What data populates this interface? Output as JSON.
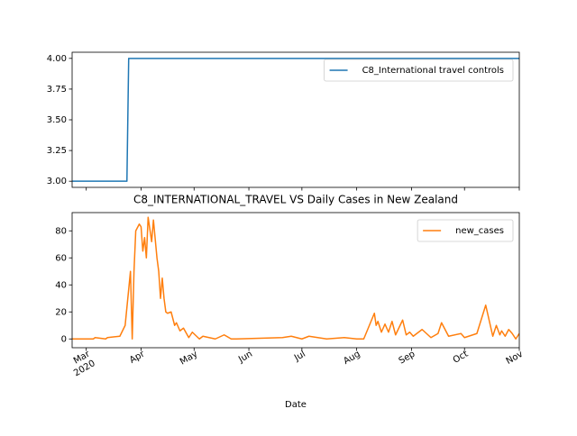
{
  "chart_data": [
    {
      "type": "line",
      "xlim": [
        "2020-02-22",
        "2020-11-01"
      ],
      "ylim": [
        2.95,
        4.05
      ],
      "yticks": [
        {
          "value": 3,
          "label": "3.00"
        },
        {
          "value": 3.25,
          "label": "3.25"
        },
        {
          "value": 3.5,
          "label": "3.50"
        },
        {
          "value": 3.75,
          "label": "3.75"
        },
        {
          "value": 4,
          "label": "4.00"
        }
      ],
      "xticks": [
        "2020-03-01",
        "2020-04-01",
        "2020-05-01",
        "2020-06-01",
        "2020-07-01",
        "2020-08-01",
        "2020-09-01",
        "2020-10-01",
        "2020-11-01"
      ],
      "legend": "upper right",
      "series": [
        {
          "name": "C8_International travel controls",
          "color": "#1f77b4",
          "x": [
            "2020-02-22",
            "2020-03-24",
            "2020-03-25",
            "2020-11-01"
          ],
          "values": [
            3,
            3,
            4,
            4
          ]
        }
      ]
    },
    {
      "type": "line",
      "title": "C8_INTERNATIONAL_TRAVEL VS Daily Cases in New Zealand",
      "xlabel": "Date",
      "xlim": [
        "2020-02-22",
        "2020-11-01"
      ],
      "ylim": [
        -6.5,
        93.5
      ],
      "yticks": [
        0,
        20,
        40,
        60,
        80
      ],
      "xticks": [
        {
          "value": "2020-03-01",
          "label": "Mar\n2020"
        },
        {
          "value": "2020-04-01",
          "label": "Apr"
        },
        {
          "value": "2020-05-01",
          "label": "May"
        },
        {
          "value": "2020-06-01",
          "label": "Jun"
        },
        {
          "value": "2020-07-01",
          "label": "Jul"
        },
        {
          "value": "2020-08-01",
          "label": "Aug"
        },
        {
          "value": "2020-09-01",
          "label": "Sep"
        },
        {
          "value": "2020-10-01",
          "label": "Oct"
        },
        {
          "value": "2020-11-01",
          "label": "Nov"
        }
      ],
      "legend": "upper right",
      "series": [
        {
          "name": "new_cases",
          "color": "#ff7f0e",
          "x": [
            "2020-02-22",
            "2020-03-05",
            "2020-03-06",
            "2020-03-12",
            "2020-03-13",
            "2020-03-20",
            "2020-03-23",
            "2020-03-26",
            "2020-03-27",
            "2020-03-28",
            "2020-03-29",
            "2020-03-31",
            "2020-04-01",
            "2020-04-02",
            "2020-04-03",
            "2020-04-04",
            "2020-04-05",
            "2020-04-07",
            "2020-04-08",
            "2020-04-10",
            "2020-04-11",
            "2020-04-12",
            "2020-04-13",
            "2020-04-14",
            "2020-04-15",
            "2020-04-16",
            "2020-04-18",
            "2020-04-20",
            "2020-04-21",
            "2020-04-23",
            "2020-04-25",
            "2020-04-28",
            "2020-04-30",
            "2020-05-04",
            "2020-05-06",
            "2020-05-13",
            "2020-05-18",
            "2020-05-22",
            "2020-05-25",
            "2020-06-20",
            "2020-06-25",
            "2020-07-01",
            "2020-07-05",
            "2020-07-10",
            "2020-07-15",
            "2020-07-25",
            "2020-08-01",
            "2020-08-05",
            "2020-08-11",
            "2020-08-12",
            "2020-08-13",
            "2020-08-15",
            "2020-08-17",
            "2020-08-19",
            "2020-08-21",
            "2020-08-23",
            "2020-08-27",
            "2020-08-29",
            "2020-08-31",
            "2020-09-02",
            "2020-09-07",
            "2020-09-12",
            "2020-09-16",
            "2020-09-18",
            "2020-09-22",
            "2020-09-29",
            "2020-10-01",
            "2020-10-08",
            "2020-10-13",
            "2020-10-17",
            "2020-10-19",
            "2020-10-21",
            "2020-10-22",
            "2020-10-24",
            "2020-10-26",
            "2020-10-28",
            "2020-10-30",
            "2020-11-01"
          ],
          "values": [
            0,
            0,
            1,
            0,
            1,
            2,
            10,
            50,
            0,
            50,
            80,
            85,
            83,
            65,
            75,
            60,
            90,
            72,
            88,
            60,
            50,
            30,
            45,
            30,
            20,
            19,
            20,
            10,
            12,
            6,
            8,
            1,
            5,
            0,
            2,
            0,
            3,
            0,
            0,
            1,
            2,
            0,
            2,
            1,
            0,
            1,
            0,
            0,
            19,
            10,
            13,
            5,
            11,
            5,
            13,
            3,
            14,
            3,
            5,
            2,
            7,
            1,
            4,
            12,
            2,
            4,
            1,
            4,
            25,
            2,
            10,
            3,
            6,
            2,
            7,
            4,
            0,
            4
          ]
        }
      ]
    }
  ]
}
